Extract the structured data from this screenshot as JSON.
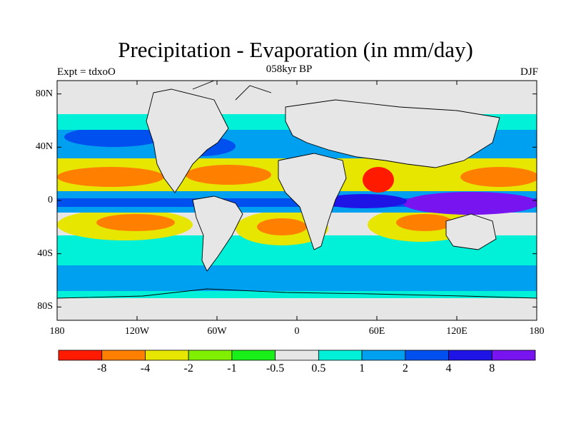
{
  "title": "Precipitation - Evaporation (in mm/day)",
  "subtitle_left": "Expt = tdxoO",
  "subtitle_center": "058kyr BP",
  "subtitle_right": "DJF",
  "lat_ticks": [
    {
      "label": "80N",
      "lat": 80
    },
    {
      "label": "40N",
      "lat": 40
    },
    {
      "label": "0",
      "lat": 0
    },
    {
      "label": "40S",
      "lat": -40
    },
    {
      "label": "80S",
      "lat": -80
    }
  ],
  "lon_ticks": [
    {
      "label": "180",
      "lon": -180
    },
    {
      "label": "120W",
      "lon": -120
    },
    {
      "label": "60W",
      "lon": -60
    },
    {
      "label": "0",
      "lon": 0
    },
    {
      "label": "60E",
      "lon": 60
    },
    {
      "label": "120E",
      "lon": 120
    },
    {
      "label": "180",
      "lon": 180
    }
  ],
  "colorbar": {
    "colors": [
      "#ff1a00",
      "#ff8000",
      "#e6e600",
      "#80f000",
      "#19f019",
      "#e6e6e6",
      "#00f0d8",
      "#00a0f0",
      "#0050f0",
      "#1e14e6",
      "#7814f0"
    ],
    "labels": [
      "-8",
      "-4",
      "-2",
      "-1",
      "-0.5",
      "0.5",
      "1",
      "2",
      "4",
      "8"
    ]
  },
  "legend": {
    "land_color": "#e6e6e6"
  }
}
